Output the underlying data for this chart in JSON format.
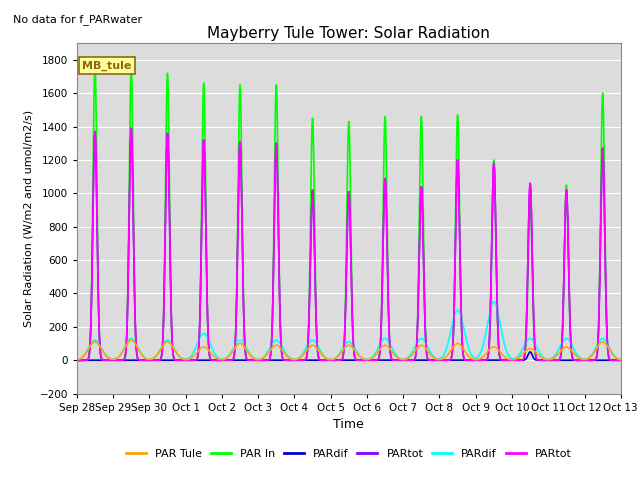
{
  "title": "Mayberry Tule Tower: Solar Radiation",
  "subtitle": "No data for f_PARwater",
  "ylabel": "Solar Radiation (W/m2 and umol/m2/s)",
  "xlabel": "Time",
  "ylim": [
    -200,
    1900
  ],
  "yticks": [
    -200,
    0,
    200,
    400,
    600,
    800,
    1000,
    1200,
    1400,
    1600,
    1800
  ],
  "background_color": "#dcdcdc",
  "legend_box_label": "MB_tule",
  "legend_box_color": "#ffff99",
  "legend_box_border": "#8B6914",
  "series": [
    {
      "label": "PAR Tule",
      "color": "#FFA500",
      "lw": 1.2
    },
    {
      "label": "PAR In",
      "color": "#00FF00",
      "lw": 1.2
    },
    {
      "label": "PARdif",
      "color": "#0000CD",
      "lw": 1.2
    },
    {
      "label": "PARtot",
      "color": "#8B00FF",
      "lw": 1.2
    },
    {
      "label": "PARdif",
      "color": "#00FFFF",
      "lw": 1.2
    },
    {
      "label": "PARtot",
      "color": "#FF00FF",
      "lw": 1.2
    }
  ],
  "x_tick_labels": [
    "Sep 28",
    "Sep 29",
    "Sep 30",
    "Oct 1",
    "Oct 2",
    "Oct 3",
    "Oct 4",
    "Oct 5",
    "Oct 6",
    "Oct 7",
    "Oct 8",
    "Oct 9",
    "Oct 10",
    "Oct 11",
    "Oct 12",
    "Oct 13"
  ],
  "n_days": 16,
  "day_peaks": {
    "PAR_In": [
      1770,
      1770,
      1720,
      1660,
      1650,
      1650,
      1450,
      1430,
      1460,
      1460,
      1470,
      1200,
      950,
      1050,
      1600,
      0
    ],
    "PAR_Tule": [
      110,
      120,
      110,
      80,
      100,
      90,
      90,
      90,
      90,
      90,
      100,
      80,
      70,
      80,
      110,
      0
    ],
    "PARdif_b": [
      0,
      0,
      0,
      0,
      0,
      0,
      0,
      0,
      0,
      0,
      0,
      0,
      50,
      0,
      0,
      0
    ],
    "PARtot_p": [
      1370,
      1390,
      1360,
      1320,
      1310,
      1300,
      1020,
      1010,
      1090,
      1040,
      1200,
      1180,
      1060,
      1020,
      1270,
      0
    ],
    "PARdif_c": [
      120,
      130,
      120,
      160,
      120,
      120,
      120,
      110,
      130,
      130,
      300,
      350,
      130,
      130,
      130,
      0
    ],
    "PARtot_m": [
      1370,
      1390,
      1360,
      1320,
      1310,
      1300,
      1020,
      1010,
      1090,
      1040,
      1200,
      1180,
      1060,
      1020,
      1270,
      0
    ]
  },
  "peak_widths": {
    "PAR_In": 0.055,
    "PAR_Tule": 0.18,
    "PARdif_b": 0.06,
    "PARtot_p": 0.058,
    "PARdif_c": 0.18,
    "PARtot_m": 0.058
  },
  "figsize": [
    6.4,
    4.8
  ],
  "dpi": 100
}
